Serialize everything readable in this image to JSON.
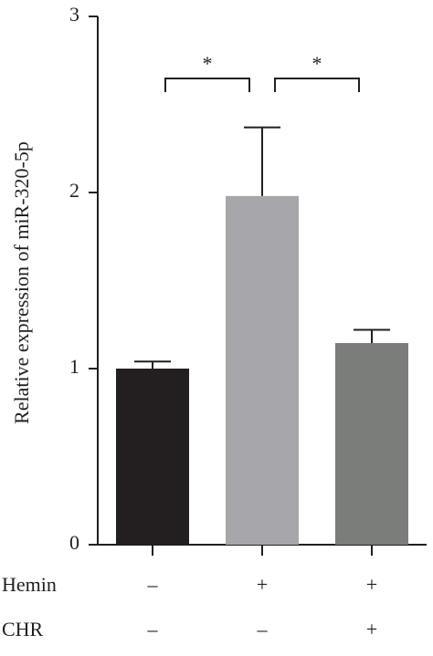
{
  "chart_data": {
    "type": "bar",
    "y_label": "Relative expression of miR-320-5p",
    "values": [
      1.0,
      1.98,
      1.145
    ],
    "errors": [
      0.04,
      0.39,
      0.075
    ],
    "colors": [
      "#231f20",
      "#a7a6ab",
      "#7b7d7b"
    ],
    "ylim": [
      0,
      3
    ],
    "yticks": [
      0,
      1,
      2,
      3
    ],
    "annotations": [
      "*",
      "*"
    ],
    "conditions": [
      {
        "name": "Hemin",
        "values": [
          "–",
          "+",
          "+"
        ]
      },
      {
        "name": "CHR",
        "values": [
          "–",
          "–",
          "+"
        ]
      }
    ]
  }
}
